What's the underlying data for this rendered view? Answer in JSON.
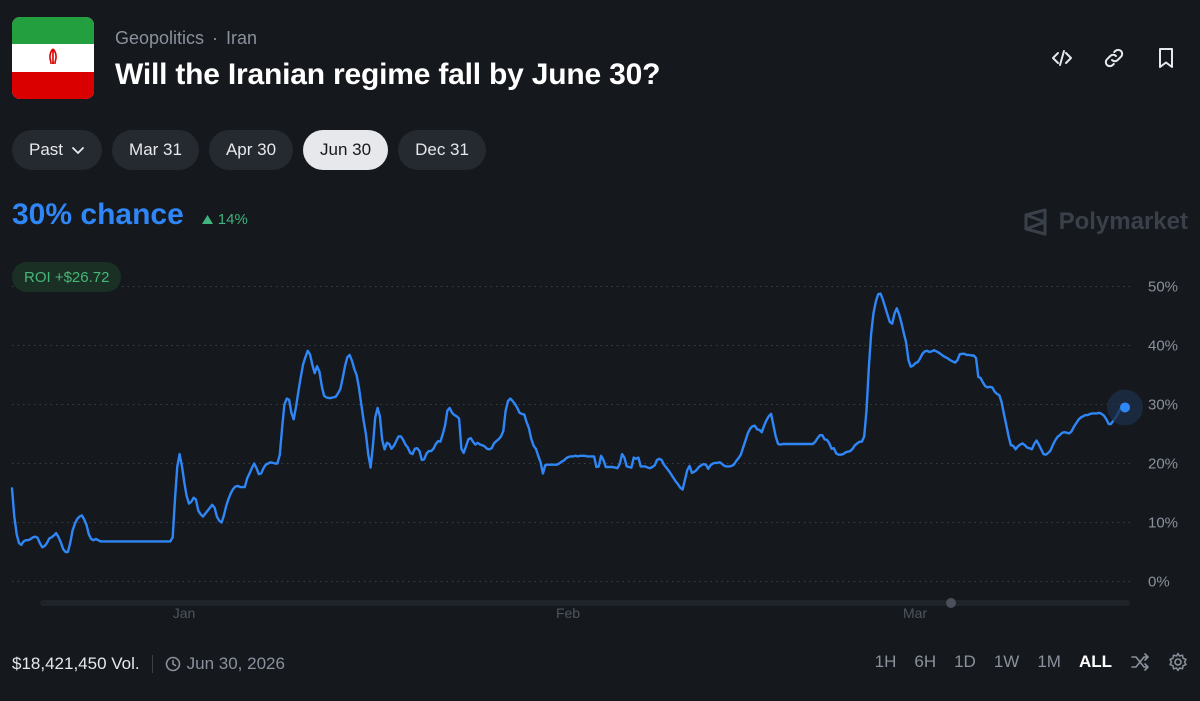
{
  "header": {
    "breadcrumb": [
      "Geopolitics",
      "Iran"
    ],
    "breadcrumb_sep": "·",
    "title": "Will the Iranian regime fall by June 30?",
    "actions": [
      "embed-icon",
      "link-icon",
      "bookmark-icon"
    ]
  },
  "tabs": [
    {
      "label": "Past",
      "dropdown": true,
      "active": false
    },
    {
      "label": "Mar 31",
      "active": false
    },
    {
      "label": "Apr 30",
      "active": false
    },
    {
      "label": "Jun 30",
      "active": true
    },
    {
      "label": "Dec 31",
      "active": false
    }
  ],
  "summary": {
    "chance": "30% chance",
    "delta": "14%",
    "brand": "Polymarket",
    "roi": "ROI +$26.72"
  },
  "footer": {
    "volume": "$18,421,450 Vol.",
    "end_date": "Jun 30, 2026",
    "ranges": [
      "1H",
      "6H",
      "1D",
      "1W",
      "1M",
      "ALL"
    ],
    "active_range": "ALL"
  },
  "colors": {
    "line": "#2f86f6",
    "up": "#3fb47c",
    "background": "#15181d"
  },
  "chart_data": {
    "type": "line",
    "title": "",
    "xlabel": "",
    "ylabel": "",
    "ylim": [
      0,
      50
    ],
    "y_ticks": [
      "50%",
      "40%",
      "30%",
      "20%",
      "10%",
      "0%"
    ],
    "x_ticks": [
      "Jan",
      "Feb",
      "Mar"
    ],
    "grid": true,
    "series": [
      {
        "values": [
          15.8,
          11,
          8,
          6.5,
          6.2,
          6.8,
          7,
          7,
          7.2,
          7.5,
          7.6,
          7.4,
          6.5,
          5.8,
          6,
          6.5,
          7.3,
          7.5,
          7.8,
          8.2,
          7.5,
          6.6,
          5.5,
          5,
          5,
          6.5,
          8.6,
          9.8,
          10.6,
          11,
          11.2,
          10.5,
          9.6,
          8,
          7.2,
          7,
          7.2,
          7,
          6.8,
          6.8,
          6.8,
          6.8,
          6.8,
          6.8,
          6.8,
          6.8,
          6.8,
          6.8,
          6.8,
          6.8,
          6.8,
          6.8,
          6.8,
          6.8,
          6.8,
          6.8,
          6.8,
          6.8,
          6.8,
          6.8,
          6.8,
          6.8,
          6.8,
          6.8,
          6.8,
          6.8,
          6.8,
          6.8,
          6.8,
          7.5,
          14,
          19.5,
          21.6,
          19.5,
          16.8,
          14.5,
          13.2,
          13.5,
          14.2,
          13.9,
          12,
          11.4,
          11,
          11.5,
          12,
          12.5,
          13,
          12.5,
          11,
          10.3,
          10,
          11.2,
          12.8,
          14,
          15,
          15.7,
          16.1,
          16.2,
          16,
          16,
          16,
          17.5,
          18.3,
          19.2,
          20,
          19.2,
          18.2,
          18.3,
          19.2,
          19.8,
          20,
          20.2,
          20.1,
          20,
          20,
          21.5,
          26,
          30,
          31,
          30.8,
          28.6,
          27.5,
          29.7,
          32.2,
          34.6,
          36.8,
          38,
          39.1,
          38.5,
          36.7,
          35.3,
          36.5,
          35.6,
          33.2,
          31.5,
          31.2,
          31.1,
          31.1,
          31.2,
          31.3,
          31.9,
          32.6,
          34.4,
          36.5,
          38,
          38.4,
          37.4,
          36,
          35,
          32.9,
          30,
          27.3,
          25,
          21.5,
          19.3,
          23,
          27.8,
          29.4,
          28,
          24,
          22.4,
          23.5,
          23.3,
          22.5,
          23,
          23.8,
          24.6,
          24.6,
          24,
          23.2,
          22.7,
          21.8,
          21.6,
          22.5,
          22.6,
          22.1,
          20.6,
          20.7,
          21.7,
          22.1,
          22.1,
          22.5,
          23.3,
          23.8,
          23.7,
          25,
          26.5,
          29,
          29.4,
          28.6,
          28.2,
          28,
          27.6,
          22.5,
          21.8,
          22.9,
          24.1,
          24.3,
          23.7,
          23.2,
          23.5,
          23.2,
          23.1,
          22.9,
          22.5,
          22.4,
          22.6,
          23.4,
          23.8,
          24.1,
          24.6,
          25.5,
          28.9,
          30.6,
          31,
          30.6,
          30.1,
          29.4,
          28.6,
          28.4,
          28.3,
          27,
          26,
          24.2,
          23,
          22.5,
          21.3,
          20.2,
          18.3,
          19.7,
          19.8,
          19.8,
          19.8,
          19.8,
          19.8,
          20,
          20.3,
          20.5,
          20.9,
          21.1,
          21.2,
          21.2,
          21.3,
          21.2,
          21.3,
          21.3,
          21.3,
          21.2,
          21.2,
          21.2,
          21.2,
          19.4,
          19.5,
          21.3,
          20.6,
          19.4,
          19.4,
          19.4,
          19.4,
          19.3,
          19.2,
          19.9,
          21.6,
          21,
          19.5,
          19.4,
          19.3,
          21,
          20.8,
          21,
          19.5,
          19.5,
          19.5,
          19.3,
          19.2,
          19.4,
          19.7,
          20.6,
          20.8,
          20.6,
          19.8,
          19.3,
          18.8,
          18.2,
          17.6,
          17,
          16.5,
          15.9,
          15.6,
          17.2,
          18.9,
          19.6,
          18.4,
          18.6,
          18.9,
          19.4,
          19.7,
          19.9,
          19.8,
          19.1,
          19.7,
          20,
          20.1,
          20.1,
          20.2,
          19.9,
          19.6,
          19.5,
          19.5,
          19.6,
          19.8,
          20.4,
          20.9,
          21.5,
          22.7,
          23.9,
          25.1,
          25.9,
          26.3,
          26.4,
          25.8,
          25.7,
          25.3,
          26.4,
          27.3,
          28,
          28.4,
          26.5,
          24.6,
          23.3,
          23.2,
          23.3,
          23.3,
          23.3,
          23.3,
          23.3,
          23.3,
          23.3,
          23.3,
          23.3,
          23.3,
          23.3,
          23.3,
          23.3,
          23.3,
          23.7,
          24.3,
          24.8,
          24.8,
          24.1,
          24,
          23.4,
          22.5,
          22.6,
          21.7,
          21.5,
          21.5,
          21.6,
          21.9,
          22,
          22.1,
          22.5,
          23.1,
          23.4,
          23.7,
          23.7,
          24.6,
          29,
          36.4,
          42.1,
          45.5,
          47.5,
          48.7,
          48.8,
          47.8,
          46.5,
          45.2,
          44,
          43.7,
          45.4,
          46.3,
          45.3,
          43.8,
          42.1,
          40.5,
          37.5,
          36.4,
          36.6,
          37,
          37.2,
          37.8,
          38.6,
          39,
          39.1,
          38.9,
          39,
          39.2,
          39,
          38.8,
          38.5,
          38.2,
          38,
          37.8,
          37.5,
          37.3,
          37.1,
          37.5,
          38.5,
          38.6,
          38.6,
          38.4,
          38.4,
          38.3,
          38.3,
          37.9,
          34.7,
          34.5,
          33.7,
          33.1,
          32.9,
          33,
          32.9,
          32.2,
          31.8,
          31.6,
          30.4,
          28.4,
          26.6,
          24.6,
          23.1,
          23,
          22.4,
          22.9,
          23.2,
          23.4,
          23.1,
          22.7,
          22.6,
          22.4,
          23.3,
          23.9,
          23.2,
          22.4,
          21.6,
          21.5,
          21.8,
          22.2,
          23.1,
          23.9,
          24.5,
          24.8,
          25.2,
          25.3,
          25.2,
          25.1,
          25.4,
          26.2,
          26.8,
          27.4,
          27.8,
          28,
          28.2,
          28.2,
          28.4,
          28.5,
          28.5,
          28.5,
          28.6,
          28.4,
          28.1,
          27.5,
          26.7,
          26.7,
          27.3,
          27.8,
          28.5,
          29.3,
          29.6,
          29.5
        ]
      }
    ]
  }
}
